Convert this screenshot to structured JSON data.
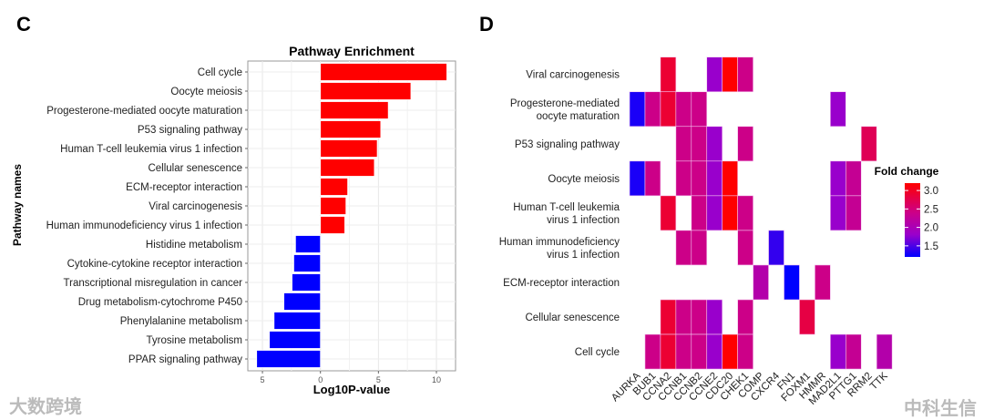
{
  "panels": {
    "left_letter": "C",
    "right_letter": "D"
  },
  "watermarks": {
    "left": "大数跨境",
    "right": "中科生信"
  },
  "chart_data": [
    {
      "type": "bar",
      "orientation": "horizontal",
      "title": "Pathway Enrichment",
      "xlabel": "Log10P-value",
      "ylabel": "Pathway names",
      "xlim": [
        -6,
        11.5
      ],
      "xticks": [
        {
          "value": -5,
          "label": "5"
        },
        {
          "value": 0,
          "label": "0"
        },
        {
          "value": 5,
          "label": "5"
        },
        {
          "value": 10,
          "label": "10"
        }
      ],
      "grid": true,
      "categories": [
        "Cell cycle",
        "Oocyte meiosis",
        "Progesterone-mediated oocyte maturation",
        "P53 signaling pathway",
        "Human T-cell leukemia virus 1 infection",
        "Cellular senescence",
        "ECM-receptor interaction",
        "Viral carcinogenesis",
        "Human immunodeficiency virus 1 infection",
        "Histidine metabolism",
        "Cytokine-cytokine receptor interaction",
        "Transcriptional misregulation in cancer",
        "Drug metabolism-cytochrome P450",
        "Phenylalanine metabolism",
        "Tyrosine metabolism",
        "PPAR signaling pathway"
      ],
      "values": [
        10.9,
        7.8,
        5.85,
        5.2,
        4.9,
        4.65,
        2.35,
        2.2,
        2.1,
        -2.15,
        -2.3,
        -2.45,
        -3.15,
        -4.0,
        -4.4,
        -5.5
      ],
      "colors": {
        "positive": "#ff0000",
        "negative": "#0000ff"
      }
    },
    {
      "type": "heatmap",
      "rows": [
        "Viral carcinogenesis",
        "Progesterone-mediated oocyte maturation",
        "P53 signaling pathway",
        "Oocyte meiosis",
        "Human T-cell leukemia virus 1 infection",
        "Human immunodeficiency virus 1 infection",
        "ECM-receptor interaction",
        "Cellular senescence",
        "Cell cycle"
      ],
      "columns": [
        "AURKA",
        "BUB1",
        "CCNA2",
        "CCNB1",
        "CCNB2",
        "CCNE2",
        "CDC20",
        "CHEK1",
        "COMP",
        "CXCR4",
        "FN1",
        "FOXM1",
        "HMMR",
        "MAD2L1",
        "PTTG1",
        "RRM2",
        "TTK"
      ],
      "values": [
        [
          null,
          null,
          2.9,
          null,
          null,
          1.8,
          3.2,
          2.4,
          null,
          null,
          null,
          null,
          null,
          null,
          null,
          null,
          null
        ],
        [
          1.3,
          2.4,
          2.9,
          2.4,
          2.4,
          null,
          null,
          null,
          null,
          null,
          null,
          null,
          null,
          1.8,
          null,
          null,
          null
        ],
        [
          null,
          null,
          null,
          2.4,
          2.4,
          1.8,
          null,
          2.4,
          null,
          null,
          null,
          null,
          null,
          null,
          null,
          2.7,
          null
        ],
        [
          1.3,
          2.4,
          null,
          2.4,
          2.4,
          1.8,
          3.2,
          null,
          null,
          null,
          null,
          null,
          null,
          1.8,
          2.3,
          null,
          null
        ],
        [
          null,
          null,
          2.9,
          null,
          2.4,
          1.8,
          3.2,
          2.4,
          null,
          null,
          null,
          null,
          null,
          1.8,
          2.3,
          null,
          null
        ],
        [
          null,
          null,
          null,
          2.4,
          2.4,
          null,
          null,
          2.4,
          null,
          1.4,
          null,
          null,
          null,
          null,
          null,
          null,
          null
        ],
        [
          null,
          null,
          null,
          null,
          null,
          null,
          null,
          null,
          2.1,
          null,
          1.2,
          null,
          2.4,
          null,
          null,
          null,
          null
        ],
        [
          null,
          null,
          2.9,
          2.4,
          2.4,
          1.8,
          null,
          2.4,
          null,
          null,
          null,
          2.8,
          null,
          null,
          null,
          null,
          null
        ],
        [
          null,
          2.4,
          2.9,
          2.4,
          2.4,
          1.8,
          3.2,
          2.4,
          null,
          null,
          null,
          null,
          null,
          1.8,
          2.3,
          null,
          2.1
        ]
      ],
      "legend": {
        "title": "Fold change",
        "ticks": [
          "3.0",
          "2.5",
          "2.0",
          "1.5"
        ],
        "tick_values": [
          3.0,
          2.5,
          2.0,
          1.5
        ],
        "range": [
          1.2,
          3.2
        ],
        "colors": [
          "#0000ff",
          "#9900cc",
          "#cc0088",
          "#ff0000"
        ],
        "placement": "right"
      }
    }
  ]
}
